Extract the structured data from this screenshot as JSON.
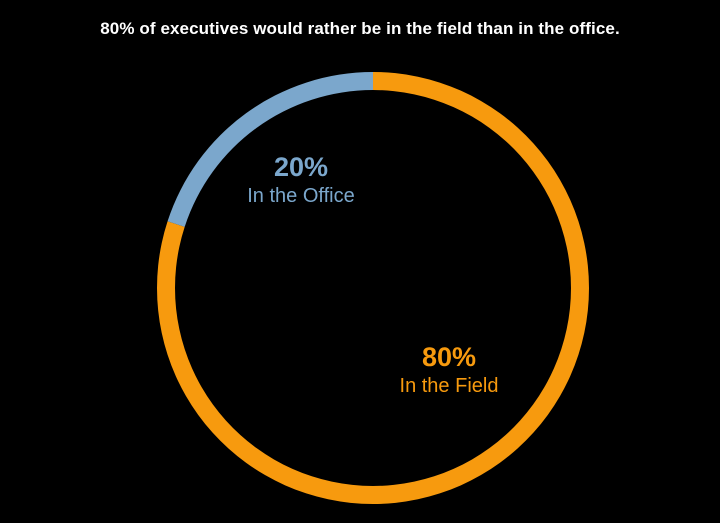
{
  "chart_data": {
    "type": "pie",
    "title": "80% of executives would rather be in the field than in the office.",
    "donut": true,
    "slices": [
      {
        "label": "In the Field",
        "value": 80,
        "value_label": "80%",
        "color": "#f79a0e"
      },
      {
        "label": "In the Office",
        "value": 20,
        "value_label": "20%",
        "color": "#7ba7cc"
      }
    ]
  }
}
